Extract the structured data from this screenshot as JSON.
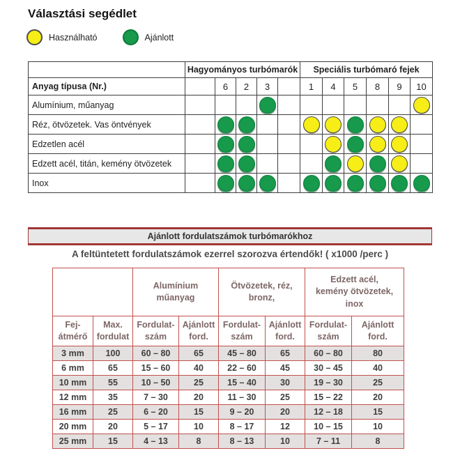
{
  "page": {
    "title": "Választási segédlet"
  },
  "legend": {
    "usable": "Használható",
    "recommended": "Ajánlott"
  },
  "colors": {
    "usable_yellow": "#f6ee16",
    "recommended_green": "#179a4b",
    "table_red": "#c0504d",
    "banner_red": "#a23636"
  },
  "matrix": {
    "group1": "Hagyományos turbómarók",
    "group2": "Speciális turbómaró fejek",
    "row_header": "Anyag típusa (Nr.)",
    "columns": [
      "6",
      "2",
      "3",
      "1",
      "4",
      "5",
      "8",
      "9",
      "10"
    ],
    "rows": [
      {
        "label": "Alumínium, műanyag",
        "cells": [
          "",
          "",
          "G",
          "",
          "",
          "",
          "",
          "",
          "Y"
        ]
      },
      {
        "label": "Réz, ötvözetek. Vas öntvények",
        "cells": [
          "G",
          "G",
          "",
          "Y",
          "Y",
          "G",
          "Y",
          "Y",
          ""
        ]
      },
      {
        "label": "Edzetlen acél",
        "cells": [
          "G",
          "G",
          "",
          "",
          "Y",
          "G",
          "Y",
          "Y",
          ""
        ]
      },
      {
        "label": "Edzett acél, titán, kemény ötvözetek",
        "cells": [
          "G",
          "G",
          "",
          "",
          "G",
          "Y",
          "G",
          "Y",
          ""
        ]
      },
      {
        "label": "Inox",
        "cells": [
          "G",
          "G",
          "G",
          "G",
          "G",
          "G",
          "G",
          "G",
          "G"
        ]
      }
    ]
  },
  "rpm": {
    "banner": "Ajánlott fordulatszámok turbómarókhoz",
    "note": "A feltüntetett fordulatszámok ezerrel szorozva értendők! ( x1000 /perc )",
    "groups": [
      "Alumínium\nműanyag",
      "Ötvözetek, réz,\nbronz,",
      "Edzett acél,\nkemény ötvözetek,\ninox"
    ],
    "sub_headers": {
      "diameter": "Fej-\nátmérő",
      "max": "Max.\nfordulat",
      "range": "Fordulat-\nszám",
      "recommended": "Ajánlott\nford."
    },
    "rows": [
      {
        "diameter": "3 mm",
        "max": "100",
        "values": [
          "60 – 80",
          "65",
          "45 – 80",
          "65",
          "60 – 80",
          "80"
        ]
      },
      {
        "diameter": "6 mm",
        "max": "65",
        "values": [
          "15 – 60",
          "40",
          "22 – 60",
          "45",
          "30 – 45",
          "40"
        ]
      },
      {
        "diameter": "10 mm",
        "max": "55",
        "values": [
          "10 – 50",
          "25",
          "15 – 40",
          "30",
          "19 – 30",
          "25"
        ]
      },
      {
        "diameter": "12 mm",
        "max": "35",
        "values": [
          "7 – 30",
          "20",
          "11 – 30",
          "25",
          "15 – 22",
          "20"
        ]
      },
      {
        "diameter": "16 mm",
        "max": "25",
        "values": [
          "6 – 20",
          "15",
          "9 – 20",
          "20",
          "12 – 18",
          "15"
        ]
      },
      {
        "diameter": "20 mm",
        "max": "20",
        "values": [
          "5 – 17",
          "10",
          "8 – 17",
          "12",
          "10 – 15",
          "10"
        ]
      },
      {
        "diameter": "25 mm",
        "max": "15",
        "values": [
          "4 – 13",
          "8",
          "8 – 13",
          "10",
          "7 – 11",
          "8"
        ]
      }
    ]
  }
}
